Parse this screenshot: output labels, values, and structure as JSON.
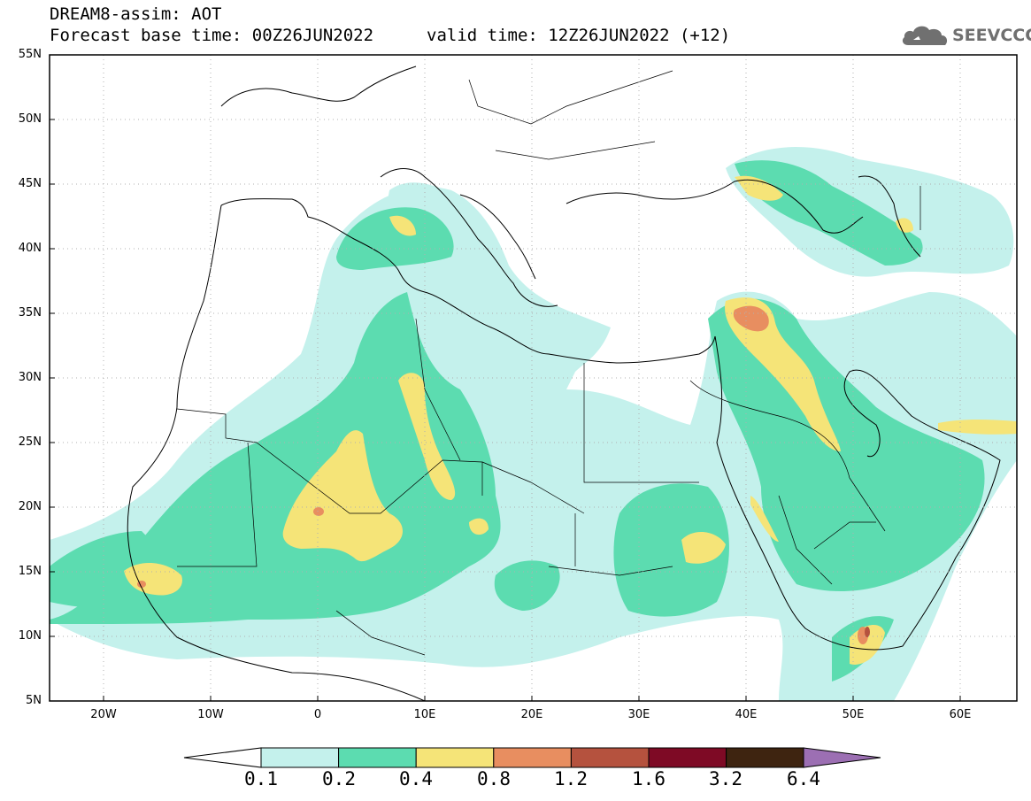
{
  "header": {
    "line1": "DREAM8-assim: AOT",
    "line2": "Forecast base time: 00Z26JUN2022",
    "valid": "valid time: 12Z26JUN2022 (+12)"
  },
  "logo": {
    "text": "SEEVCCC",
    "icon": "cloud-icon",
    "color": "#707070"
  },
  "map": {
    "lon_range": [
      -25,
      65
    ],
    "lat_range": [
      5,
      55
    ],
    "lat_ticks": [
      "55N",
      "50N",
      "45N",
      "40N",
      "35N",
      "30N",
      "25N",
      "20N",
      "15N",
      "10N",
      "5N"
    ],
    "lon_ticks": [
      "20W",
      "10W",
      "0",
      "10E",
      "20E",
      "30E",
      "40E",
      "50E",
      "60E"
    ],
    "grid": "dotted"
  },
  "colorbar": {
    "labels": [
      "0.1",
      "0.2",
      "0.4",
      "0.8",
      "1.2",
      "1.6",
      "3.2",
      "6.4"
    ],
    "colors": [
      "#c4f1ec",
      "#5cdcb0",
      "#f5e478",
      "#e88e60",
      "#b5523e",
      "#7e0a25",
      "#3e2410",
      "#9c6fb3"
    ],
    "under_color": "#ffffff"
  }
}
